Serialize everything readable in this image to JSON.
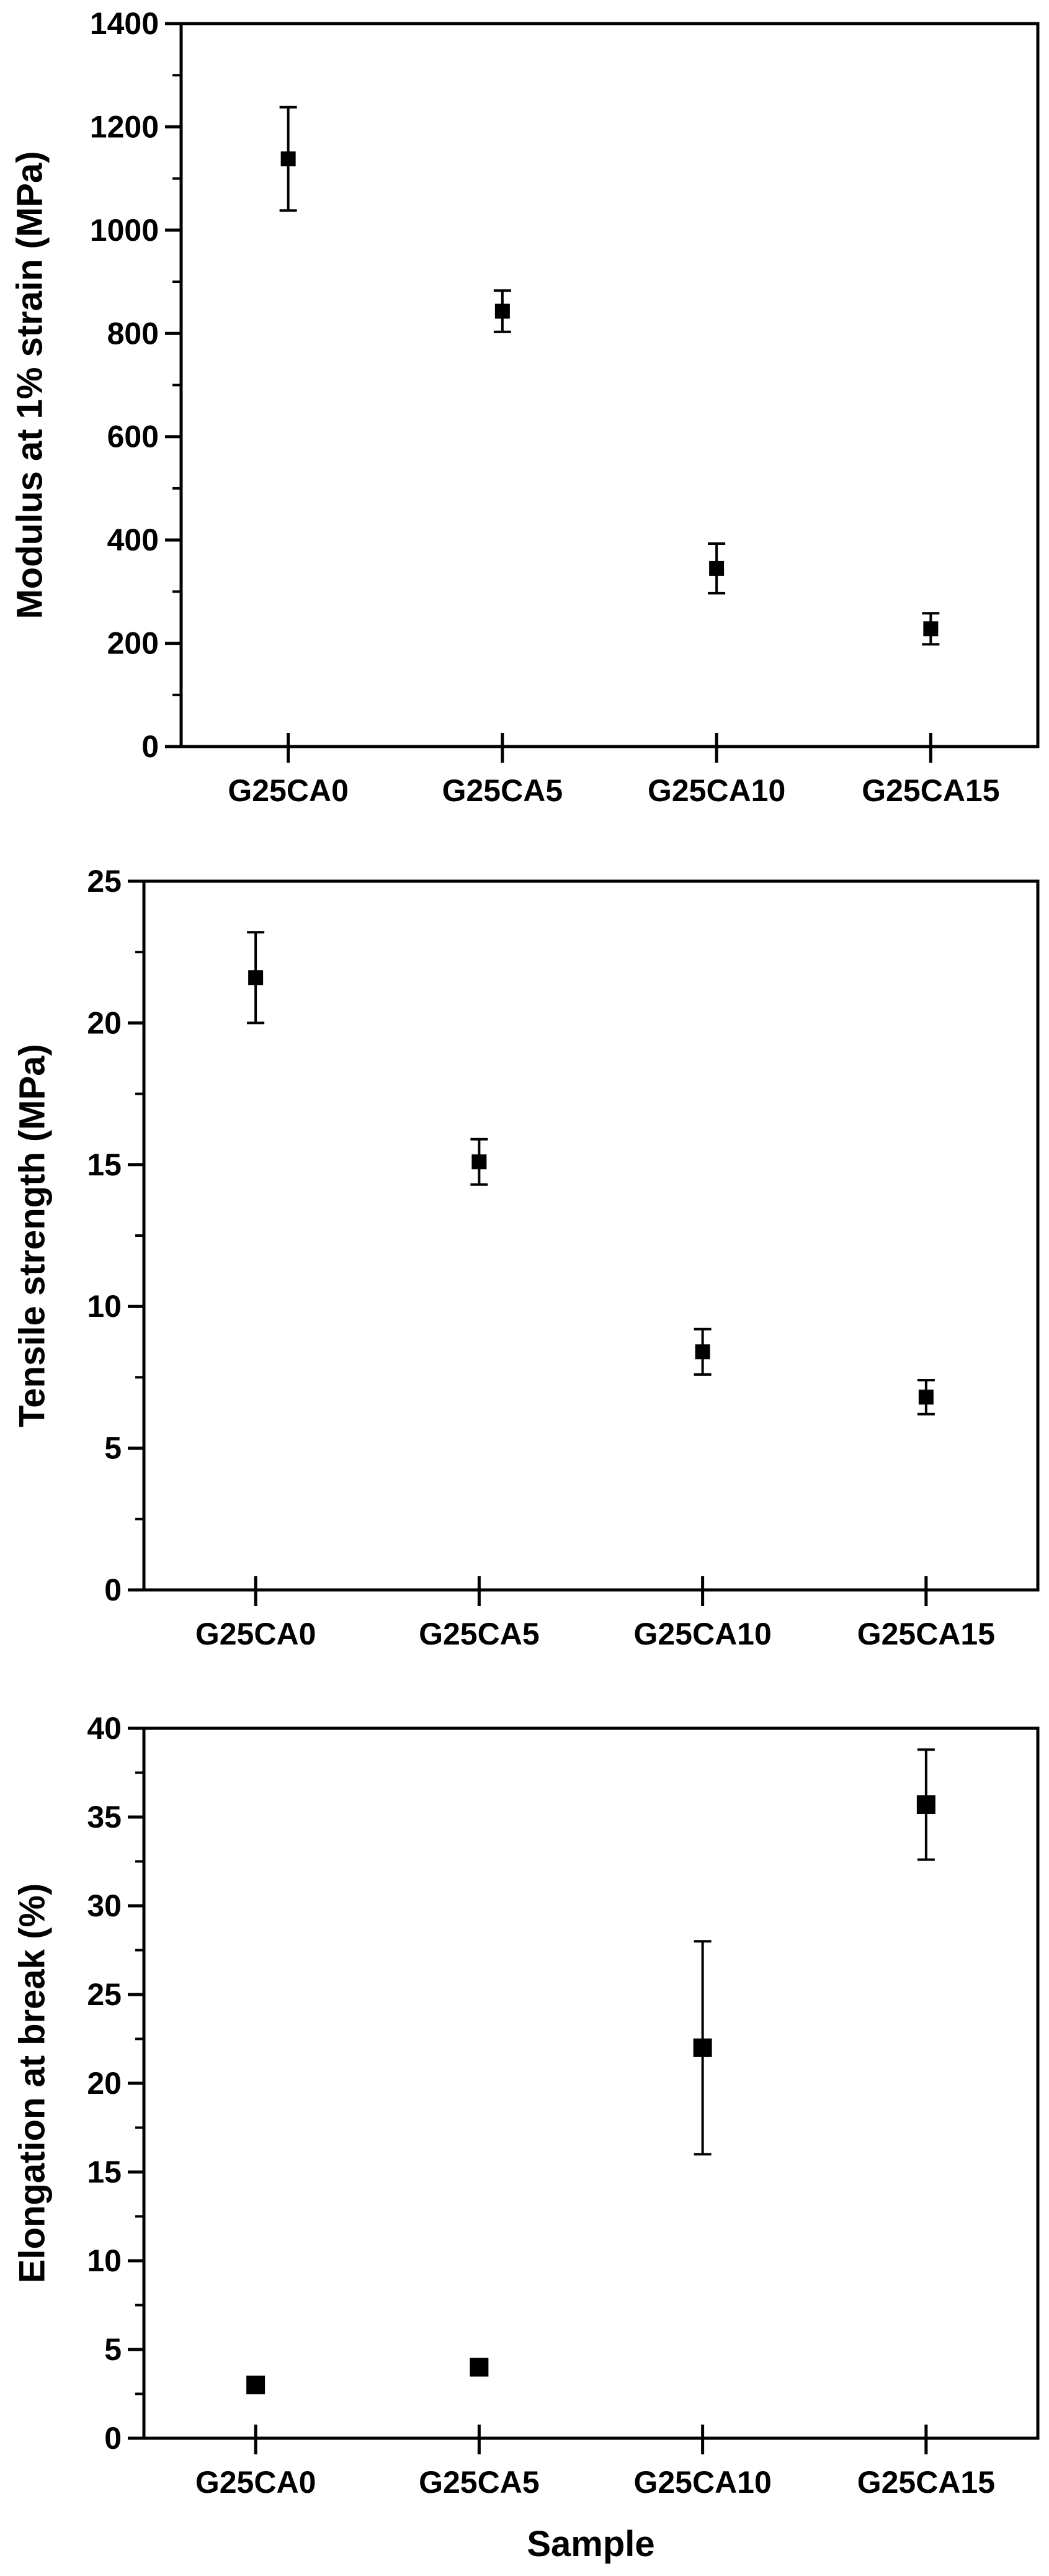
{
  "chart_data": [
    {
      "type": "scatter",
      "error_bars": true,
      "categories": [
        "G25CA0",
        "G25CA5",
        "G25CA10",
        "G25CA15"
      ],
      "values": [
        1138,
        843,
        345,
        228
      ],
      "errors": [
        100,
        40,
        48,
        30
      ],
      "xlabel": "",
      "ylabel": "Modulus at 1% strain (MPa)",
      "ylim": [
        0,
        1400
      ],
      "yticks": [
        0,
        200,
        400,
        600,
        800,
        1000,
        1200,
        1400
      ],
      "grid": false,
      "marker": "filled-square",
      "color": "#000000"
    },
    {
      "type": "scatter",
      "error_bars": true,
      "categories": [
        "G25CA0",
        "G25CA5",
        "G25CA10",
        "G25CA15"
      ],
      "values": [
        21.6,
        15.1,
        8.4,
        6.8
      ],
      "errors": [
        1.6,
        0.8,
        0.8,
        0.6
      ],
      "xlabel": "",
      "ylabel": "Tensile strength (MPa)",
      "ylim": [
        0,
        25
      ],
      "yticks": [
        0,
        5,
        10,
        15,
        20,
        25
      ],
      "grid": false,
      "marker": "filled-square",
      "color": "#000000"
    },
    {
      "type": "scatter",
      "error_bars": true,
      "categories": [
        "G25CA0",
        "G25CA5",
        "G25CA10",
        "G25CA15"
      ],
      "values": [
        3.0,
        4.0,
        22.0,
        35.7
      ],
      "errors": [
        0.2,
        0.3,
        6.0,
        3.1
      ],
      "xlabel": "Sample",
      "ylabel": "Elongation at break (%)",
      "ylim": [
        0,
        40
      ],
      "yticks": [
        0,
        5,
        10,
        15,
        20,
        25,
        30,
        35,
        40
      ],
      "grid": false,
      "marker": "filled-square",
      "color": "#000000"
    }
  ]
}
